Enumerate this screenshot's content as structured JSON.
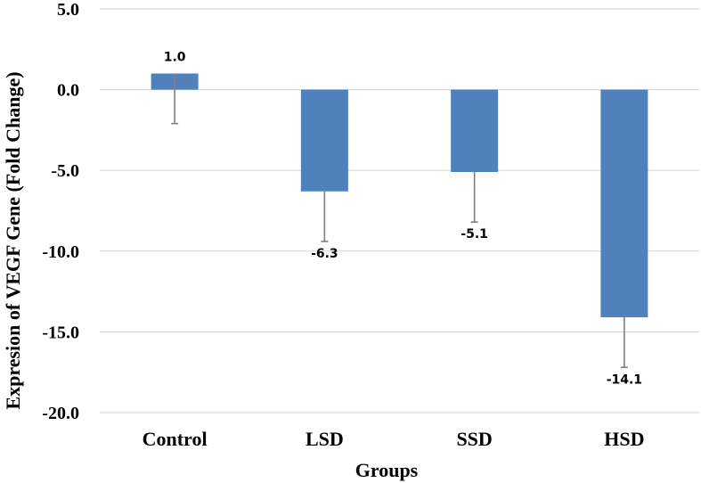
{
  "chart_data": {
    "type": "bar",
    "title": "",
    "xlabel": "Groups",
    "ylabel": "Expresion of VEGF Gene (Fold Change)",
    "categories": [
      "Control",
      "LSD",
      "SSD",
      "HSD"
    ],
    "values": [
      1.0,
      -6.3,
      -5.1,
      -14.1
    ],
    "data_labels": [
      "1.0",
      "-6.3",
      "-5.1",
      "-14.1"
    ],
    "error_bars": [
      3.1,
      3.1,
      3.1,
      3.1
    ],
    "ylim": [
      -20,
      5
    ],
    "yticks": [
      5,
      0,
      -5,
      -10,
      -15,
      -20
    ],
    "ytick_labels": [
      "5.0",
      "0.0",
      "-5.0",
      "-10.0",
      "-15.0",
      "-20.0"
    ],
    "grid": true,
    "legend": "none",
    "colors": {
      "bar": "#4f81bd",
      "error_bar": "#7f7f7f",
      "grid": "#d9d9d9"
    }
  }
}
